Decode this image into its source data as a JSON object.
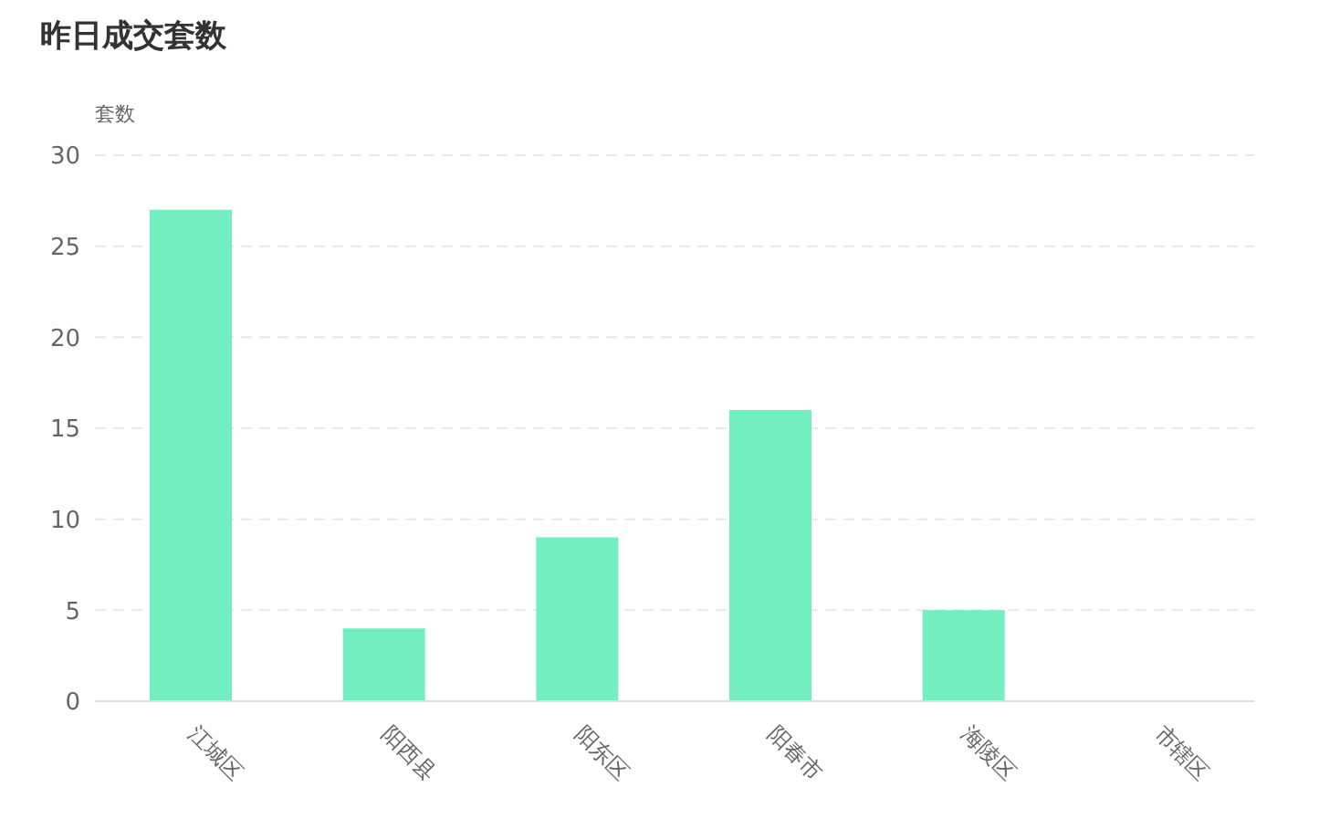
{
  "chart_data": {
    "type": "bar",
    "title": "昨日成交套数",
    "ylabel": "套数",
    "categories": [
      "江城区",
      "阳西县",
      "阳东区",
      "阳春市",
      "海陵区",
      "市辖区"
    ],
    "values": [
      27,
      4,
      9,
      16,
      5,
      0
    ],
    "color": "#73eec0",
    "ylim": [
      0,
      30
    ],
    "yticks": [
      0,
      5,
      10,
      15,
      20,
      25,
      30
    ],
    "grid": "y",
    "legend": false
  }
}
